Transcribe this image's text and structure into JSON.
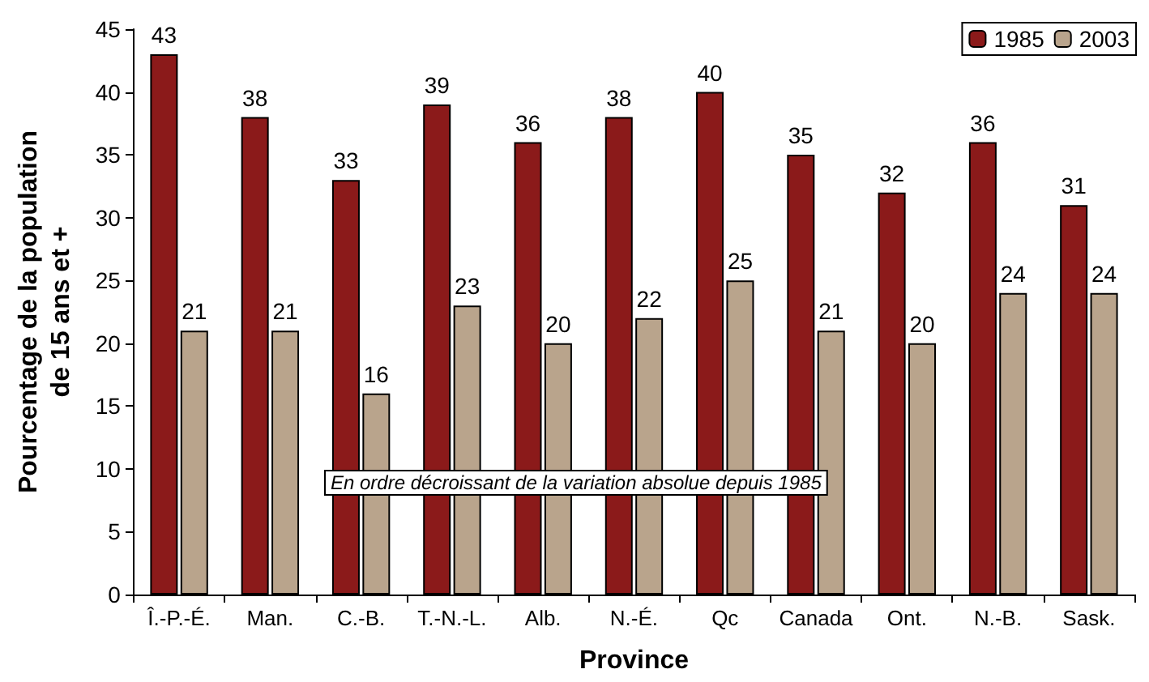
{
  "chart_data": {
    "type": "bar",
    "categories": [
      "Î.-P.-É.",
      "Man.",
      "C.-B.",
      "T.-N.-L.",
      "Alb.",
      "N.-É.",
      "Qc",
      "Canada",
      "Ont.",
      "N.-B.",
      "Sask."
    ],
    "series": [
      {
        "name": "1985",
        "color": "#8b1a1a",
        "values": [
          43,
          38,
          33,
          39,
          36,
          38,
          40,
          35,
          32,
          36,
          31
        ]
      },
      {
        "name": "2003",
        "color": "#b9a48c",
        "values": [
          21,
          21,
          16,
          23,
          20,
          22,
          25,
          21,
          20,
          24,
          24
        ]
      }
    ],
    "xlabel": "Province",
    "ylabel": "Pourcentage de la population\nde 15 ans et +",
    "annotations": [
      "En ordre décroissant de la variation absolue depuis 1985"
    ],
    "ylim": [
      0,
      45
    ],
    "yticks": [
      0,
      5,
      10,
      15,
      20,
      25,
      30,
      35,
      40,
      45
    ],
    "data_labels": true,
    "legend": "top right",
    "grid": false
  }
}
